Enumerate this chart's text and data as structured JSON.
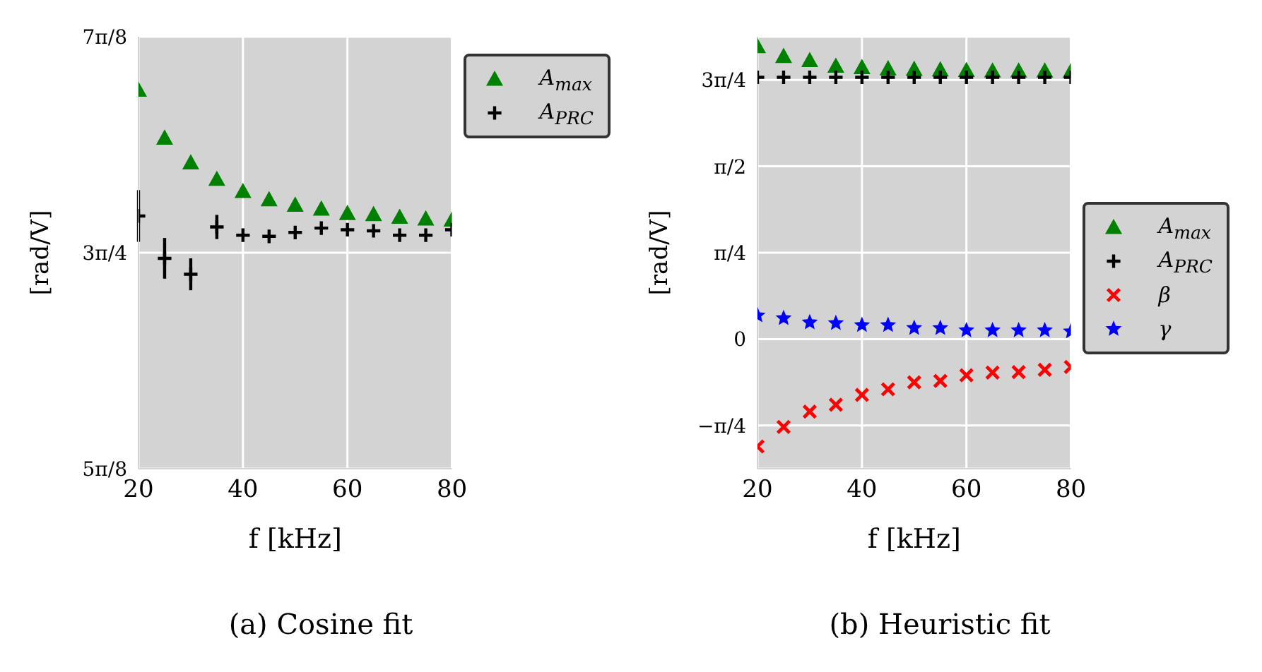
{
  "chart_data": [
    {
      "type": "scatter",
      "title": "(a) Cosine fit",
      "xlabel": "f [kHz]",
      "ylabel": "[rad/V]",
      "xlim": [
        20,
        80
      ],
      "xticks": [
        20,
        40,
        60,
        80
      ],
      "ylim": [
        1.9635,
        2.7489
      ],
      "yticks": [
        {
          "value": 1.9635,
          "label": "5π/8"
        },
        {
          "value": 2.3562,
          "label": "3π/4"
        },
        {
          "value": 2.7489,
          "label": "7π/8"
        }
      ],
      "grid": true,
      "legend": "top right",
      "x": [
        20,
        25,
        30,
        35,
        40,
        45,
        50,
        55,
        60,
        65,
        70,
        75,
        80
      ],
      "series": [
        {
          "name": "A$_{max}$",
          "color": "#008000",
          "marker": "triangle",
          "values": [
            2.652,
            2.565,
            2.52,
            2.49,
            2.468,
            2.453,
            2.443,
            2.436,
            2.428,
            2.426,
            2.421,
            2.418,
            2.416
          ]
        },
        {
          "name": "A$_{PRC}$",
          "color": "#000000",
          "marker": "plus",
          "values": [
            2.423,
            2.346,
            2.317,
            2.403,
            2.388,
            2.386,
            2.393,
            2.401,
            2.398,
            2.396,
            2.388,
            2.388,
            2.398
          ],
          "errors": [
            0.047,
            0.037,
            0.029,
            0.022,
            null,
            null,
            null,
            null,
            null,
            null,
            null,
            null,
            null
          ]
        }
      ]
    },
    {
      "type": "scatter",
      "title": "(b) Heuristic fit",
      "xlabel": "f [kHz]",
      "ylabel": "[rad/V]",
      "xlim": [
        20,
        80
      ],
      "xticks": [
        20,
        40,
        60,
        80
      ],
      "ylim": [
        -1.178,
        2.749
      ],
      "yticks": [
        {
          "value": -0.7854,
          "label": "−π/4"
        },
        0,
        {
          "value": 0.7854,
          "label": "π/4"
        },
        {
          "value": 1.5708,
          "label": "π/2"
        },
        {
          "value": 2.3562,
          "label": "3π/4"
        }
      ],
      "grid": true,
      "legend": "right",
      "x": [
        20,
        25,
        30,
        35,
        40,
        45,
        50,
        55,
        60,
        65,
        70,
        75,
        80
      ],
      "series": [
        {
          "name": "A$_{max}$",
          "color": "#008000",
          "marker": "triangle",
          "values": [
            2.661,
            2.572,
            2.534,
            2.483,
            2.471,
            2.46,
            2.455,
            2.45,
            2.445,
            2.44,
            2.44,
            2.44,
            2.435
          ]
        },
        {
          "name": "A$_{PRC}$",
          "color": "#000000",
          "marker": "plus",
          "values": [
            2.38,
            2.38,
            2.38,
            2.38,
            2.38,
            2.38,
            2.38,
            2.38,
            2.38,
            2.38,
            2.38,
            2.38,
            2.38
          ]
        },
        {
          "name": "β",
          "color": "#ff0000",
          "marker": "cross",
          "values": [
            -0.976,
            -0.798,
            -0.659,
            -0.596,
            -0.507,
            -0.456,
            -0.393,
            -0.38,
            -0.329,
            -0.304,
            -0.3,
            -0.279,
            -0.253
          ]
        },
        {
          "name": "γ",
          "color": "#0000ff",
          "marker": "star",
          "values": [
            0.215,
            0.19,
            0.152,
            0.145,
            0.127,
            0.127,
            0.101,
            0.1,
            0.08,
            0.08,
            0.08,
            0.08,
            0.07
          ]
        }
      ]
    }
  ]
}
